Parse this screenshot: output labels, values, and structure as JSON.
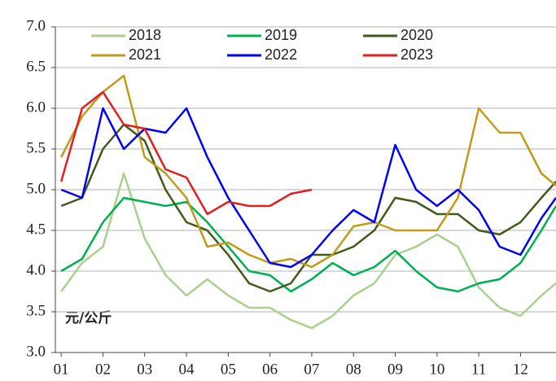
{
  "chart_data": {
    "type": "line",
    "annotation": "元/公斤",
    "x": [
      1,
      1.5,
      2,
      2.5,
      3,
      3.5,
      4,
      4.5,
      5,
      5.5,
      6,
      6.5,
      7,
      7.5,
      8,
      8.5,
      9,
      9.5,
      10,
      10.5,
      11,
      11.5,
      12,
      12.5,
      12.85
    ],
    "xlim": [
      0.86,
      12.85
    ],
    "xticks": [
      {
        "value": 1,
        "label": "01"
      },
      {
        "value": 2,
        "label": "02"
      },
      {
        "value": 3,
        "label": "03"
      },
      {
        "value": 4,
        "label": "04"
      },
      {
        "value": 5,
        "label": "05"
      },
      {
        "value": 6,
        "label": "06"
      },
      {
        "value": 7,
        "label": "07"
      },
      {
        "value": 8,
        "label": "08"
      },
      {
        "value": 9,
        "label": "09"
      },
      {
        "value": 10,
        "label": "10"
      },
      {
        "value": 11,
        "label": "11"
      },
      {
        "value": 12,
        "label": "12"
      }
    ],
    "ylim": [
      3.0,
      7.0
    ],
    "yticks": [
      {
        "value": 3,
        "label": "3.0"
      },
      {
        "value": 3.5,
        "label": "3.5"
      },
      {
        "value": 4,
        "label": "4.0"
      },
      {
        "value": 4.5,
        "label": "4.5"
      },
      {
        "value": 5,
        "label": "5.0"
      },
      {
        "value": 5.5,
        "label": "5.5"
      },
      {
        "value": 6,
        "label": "6.0"
      },
      {
        "value": 6.5,
        "label": "6.5"
      },
      {
        "value": 7,
        "label": "7.0"
      }
    ],
    "grid": true,
    "legend": "top",
    "series": [
      {
        "name": "2018",
        "color": "#a9d18e",
        "values": [
          3.75,
          4.1,
          4.3,
          5.2,
          4.4,
          3.95,
          3.7,
          3.9,
          3.7,
          3.55,
          3.55,
          3.4,
          3.3,
          3.45,
          3.7,
          3.85,
          4.2,
          4.3,
          4.45,
          4.3,
          3.8,
          3.55,
          3.45,
          3.7,
          3.85
        ]
      },
      {
        "name": "2019",
        "color": "#00b050",
        "values": [
          4.0,
          4.15,
          4.6,
          4.9,
          4.85,
          4.8,
          4.85,
          4.6,
          4.3,
          4.0,
          3.95,
          3.75,
          3.9,
          4.1,
          3.95,
          4.05,
          4.25,
          4.0,
          3.8,
          3.75,
          3.85,
          3.9,
          4.1,
          4.5,
          4.8
        ]
      },
      {
        "name": "2020",
        "color": "#3f5a1a",
        "values": [
          4.8,
          4.9,
          5.5,
          5.8,
          5.6,
          5.0,
          4.6,
          4.5,
          4.2,
          3.85,
          3.75,
          3.85,
          4.2,
          4.2,
          4.3,
          4.5,
          4.9,
          4.85,
          4.7,
          4.7,
          4.5,
          4.45,
          4.6,
          4.9,
          5.1
        ]
      },
      {
        "name": "2021",
        "color": "#c09a1a",
        "values": [
          5.4,
          5.9,
          6.2,
          6.4,
          5.4,
          5.2,
          4.9,
          4.3,
          4.35,
          4.2,
          4.1,
          4.15,
          4.05,
          4.2,
          4.55,
          4.6,
          4.5,
          4.5,
          4.5,
          4.9,
          6.0,
          5.7,
          5.7,
          5.2,
          5.05
        ]
      },
      {
        "name": "2022",
        "color": "#0000ff",
        "values": [
          5.0,
          4.9,
          6.0,
          5.5,
          5.75,
          5.7,
          6.0,
          5.4,
          4.9,
          4.5,
          4.1,
          4.05,
          4.2,
          4.5,
          4.75,
          4.6,
          5.55,
          5.0,
          4.8,
          5.0,
          4.75,
          4.3,
          4.2,
          4.65,
          4.9
        ]
      },
      {
        "name": "2023",
        "color": "#e02020",
        "values": [
          5.1,
          6.0,
          6.2,
          5.8,
          5.75,
          5.25,
          5.15,
          4.7,
          4.85,
          4.8,
          4.8,
          4.95,
          5.0,
          null,
          null,
          null,
          null,
          null,
          null,
          null,
          null,
          null,
          null,
          null,
          null
        ]
      }
    ]
  }
}
